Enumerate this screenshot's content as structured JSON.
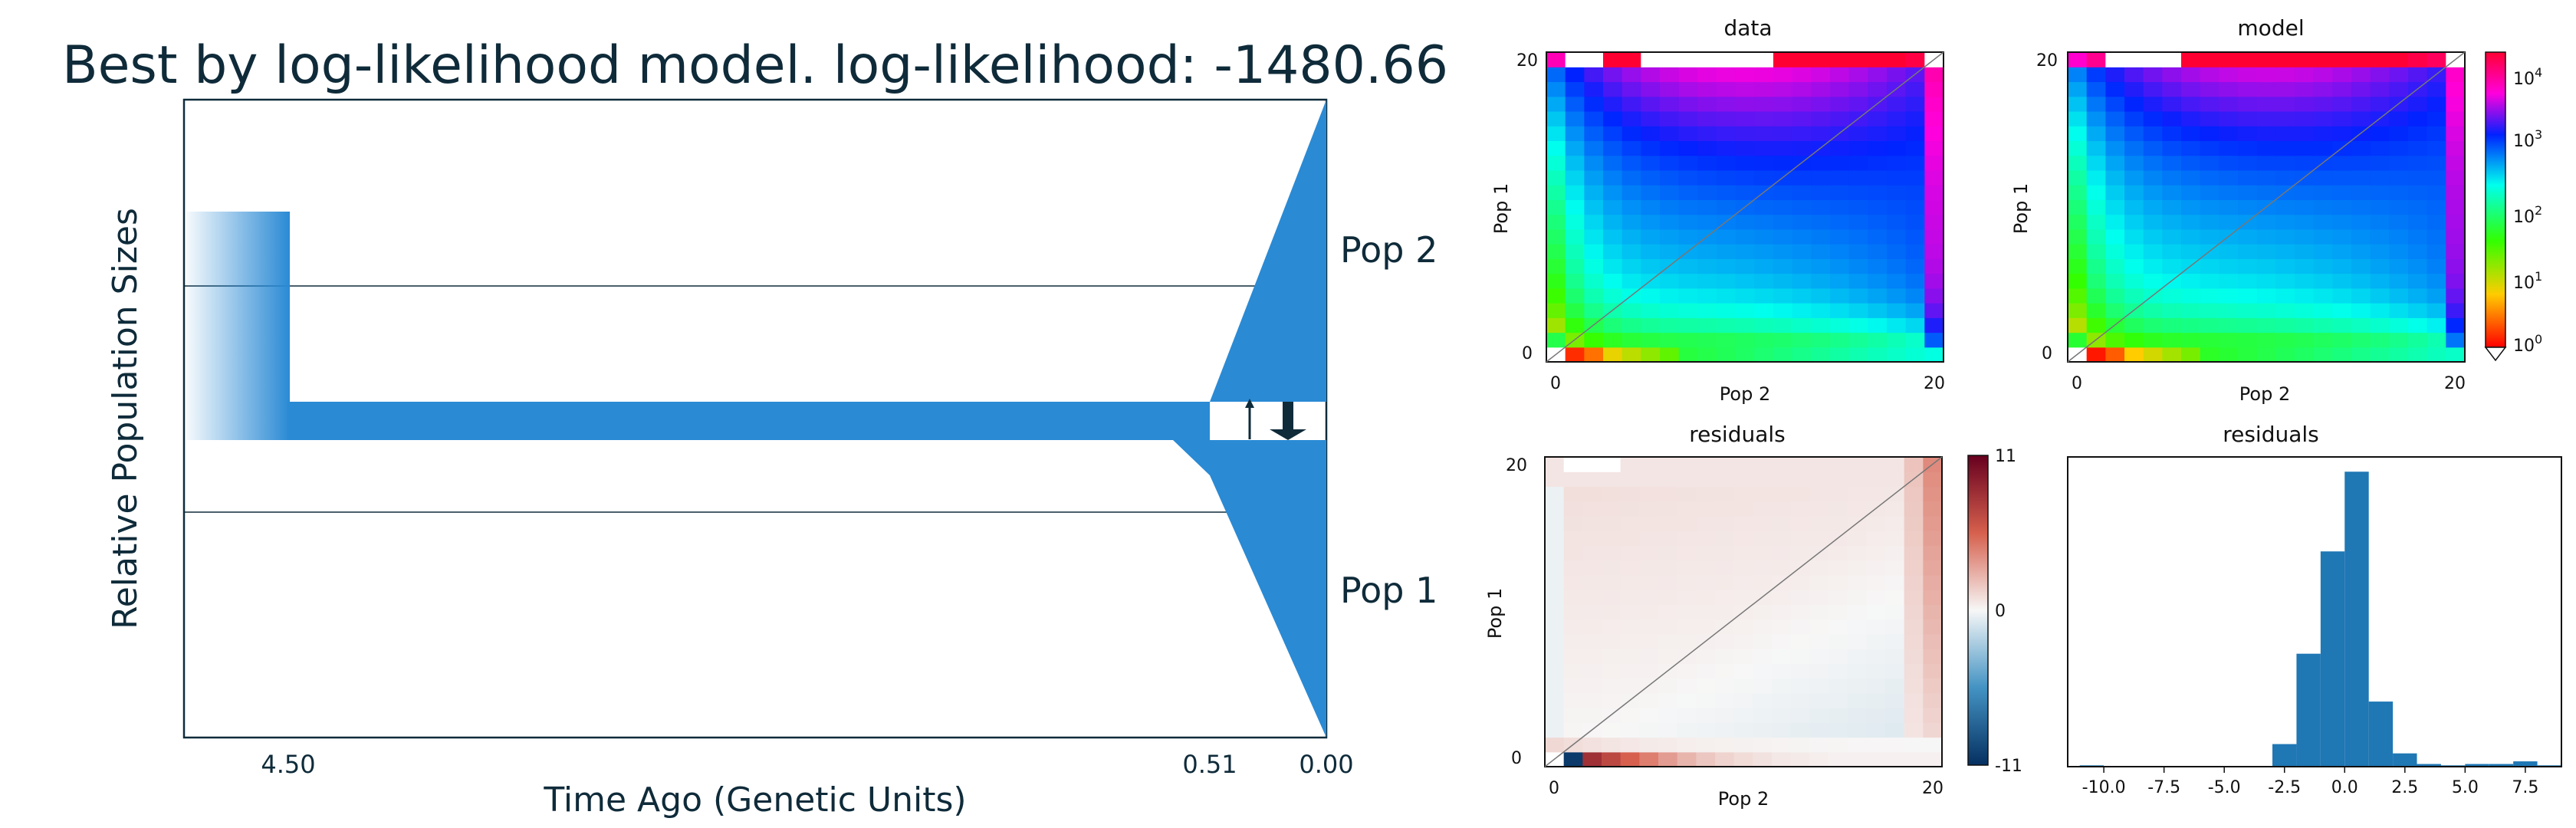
{
  "chart_data": [
    {
      "type": "population_history",
      "title": "Best by log-likelihood model. log-likelihood: -1480.66",
      "xlabel": "Time Ago (Genetic Units)",
      "ylabel": "Relative Population Sizes",
      "x_ticks": [
        "4.50",
        "0.51",
        "0.00"
      ],
      "populations": [
        "Pop 2",
        "Pop 1"
      ],
      "color": "#2a8ad4"
    },
    {
      "type": "heatmap",
      "title": "data",
      "xlabel": "Pop 2",
      "ylabel": "Pop 1",
      "x_ticks": [
        "0",
        "20"
      ],
      "y_ticks": [
        "0",
        "20"
      ],
      "grid_size": 21,
      "colormap": "gist_rainbow_r",
      "scale": "log"
    },
    {
      "type": "heatmap",
      "title": "model",
      "xlabel": "Pop 2",
      "ylabel": "Pop 1",
      "x_ticks": [
        "0",
        "20"
      ],
      "y_ticks": [
        "0",
        "20"
      ],
      "grid_size": 21,
      "colormap": "gist_rainbow_r",
      "scale": "log",
      "colorbar_ticks": [
        "10^4",
        "10^3",
        "10^2",
        "10^1",
        "10^0"
      ]
    },
    {
      "type": "heatmap",
      "title": "residuals",
      "xlabel": "Pop 2",
      "ylabel": "Pop 1",
      "x_ticks": [
        "0",
        "20"
      ],
      "y_ticks": [
        "0",
        "20"
      ],
      "grid_size": 21,
      "colormap": "RdBu_r",
      "colorbar_ticks": [
        "11",
        "0",
        "-11"
      ],
      "vmin": -11,
      "vmax": 11
    },
    {
      "type": "bar",
      "title": "residuals",
      "x_ticks": [
        "-10.0",
        "-7.5",
        "-5.0",
        "-2.5",
        "0.0",
        "2.5",
        "5.0",
        "7.5"
      ],
      "xlim": [
        -11.5,
        9.0
      ],
      "bins": [
        {
          "x0": -11,
          "x1": -10,
          "count": 1
        },
        {
          "x0": -3,
          "x1": -2,
          "count": 17
        },
        {
          "x0": -2,
          "x1": -1,
          "count": 85
        },
        {
          "x0": -1,
          "x1": 0,
          "count": 162
        },
        {
          "x0": 0,
          "x1": 1,
          "count": 222
        },
        {
          "x0": 1,
          "x1": 2,
          "count": 49
        },
        {
          "x0": 2,
          "x1": 3,
          "count": 10
        },
        {
          "x0": 3,
          "x1": 4,
          "count": 2
        },
        {
          "x0": 4,
          "x1": 5,
          "count": 1
        },
        {
          "x0": 5,
          "x1": 6,
          "count": 2
        },
        {
          "x0": 6,
          "x1": 7,
          "count": 2
        },
        {
          "x0": 7,
          "x1": 8,
          "count": 4
        },
        {
          "x0": 8,
          "x1": 9,
          "count": 1
        }
      ]
    }
  ]
}
